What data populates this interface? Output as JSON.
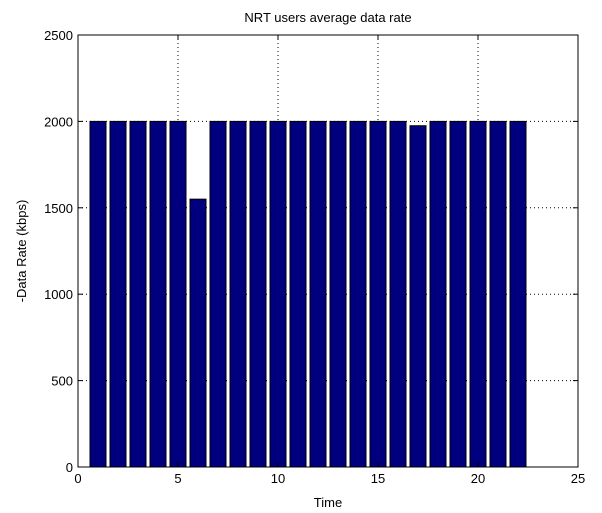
{
  "chart_data": {
    "type": "bar",
    "title": "NRT users average data rate",
    "xlabel": "Time",
    "ylabel": "-Data Rate (kbps)",
    "x": [
      1,
      2,
      3,
      4,
      5,
      6,
      7,
      8,
      9,
      10,
      11,
      12,
      13,
      14,
      15,
      16,
      17,
      18,
      19,
      20,
      21,
      22
    ],
    "values": [
      2000,
      2000,
      2000,
      2000,
      2000,
      1550,
      2000,
      2000,
      2000,
      2000,
      2000,
      2000,
      2000,
      2000,
      2000,
      2000,
      1975,
      2000,
      2000,
      2000,
      2000,
      2000
    ],
    "xlim": [
      0,
      25
    ],
    "ylim": [
      0,
      2500
    ],
    "xticks": [
      0,
      5,
      10,
      15,
      20,
      25
    ],
    "yticks": [
      0,
      500,
      1000,
      1500,
      2000,
      2500
    ],
    "xtick_labels": [
      "0",
      "5",
      "10",
      "15",
      "20",
      "25"
    ],
    "ytick_labels": [
      "0",
      "500",
      "1000",
      "1500",
      "2000",
      "2500"
    ],
    "grid": true,
    "bar_color": "#00007f",
    "bar_edge_color": "#000000"
  }
}
